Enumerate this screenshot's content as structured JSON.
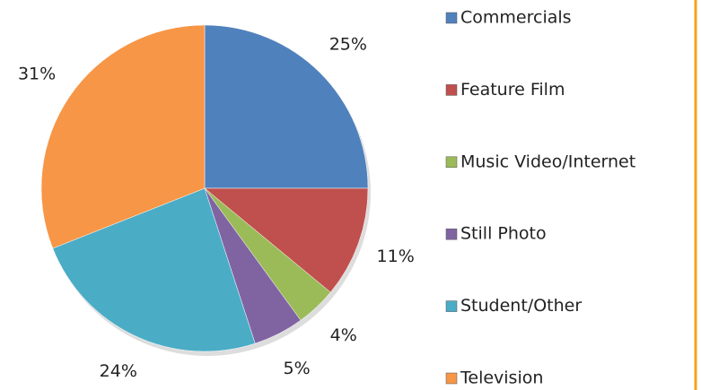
{
  "chart_data": {
    "type": "pie",
    "categories": [
      "Commercials",
      "Feature Film",
      "Music Video/Internet",
      "Still Photo",
      "Student/Other",
      "Television"
    ],
    "values": [
      25,
      11,
      4,
      5,
      24,
      31
    ],
    "value_labels": [
      "25%",
      "11%",
      "4%",
      "5%",
      "24%",
      "31%"
    ],
    "colors": [
      "#4f81bd",
      "#c0504d",
      "#9bbb59",
      "#8064a2",
      "#4bacc6",
      "#f79646"
    ],
    "legend": "right"
  }
}
